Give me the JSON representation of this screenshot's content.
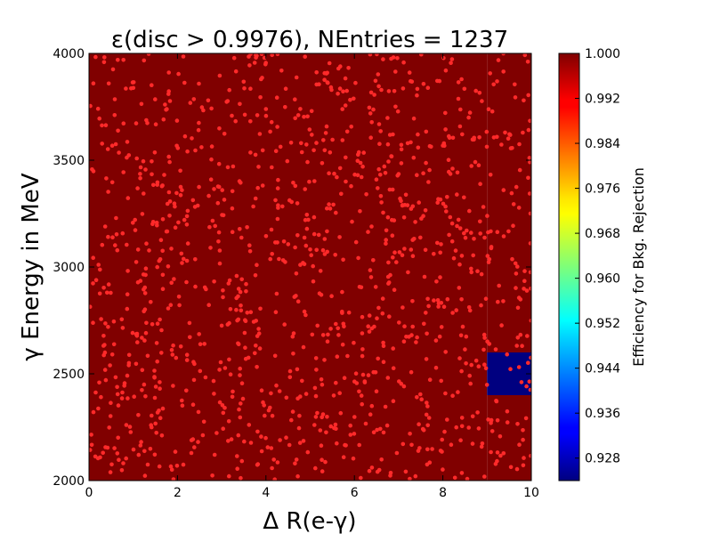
{
  "chart_data": {
    "type": "heatmap",
    "title": "ε(disc > 0.9976), NEntries = 1237",
    "xlabel": "Δ R(e-γ)",
    "ylabel": "γ Energy in MeV",
    "xlim": [
      0,
      10
    ],
    "ylim": [
      2000,
      4000
    ],
    "x_ticks": [
      0,
      2,
      4,
      6,
      8,
      10
    ],
    "x_tick_labels": [
      "0",
      "2",
      "4",
      "6",
      "8",
      "10"
    ],
    "y_ticks": [
      2000,
      2500,
      3000,
      3500,
      4000
    ],
    "y_tick_labels": [
      "2000",
      "2500",
      "3000",
      "3500",
      "4000"
    ],
    "colorbar": {
      "label": "Efficiency for Bkg. Rejection",
      "range": [
        0.924,
        1.0
      ],
      "ticks": [
        0.928,
        0.936,
        0.944,
        0.952,
        0.96,
        0.968,
        0.976,
        0.984,
        0.992,
        1.0
      ],
      "tick_labels": [
        "0.928",
        "0.936",
        "0.944",
        "0.952",
        "0.960",
        "0.968",
        "0.976",
        "0.984",
        "0.992",
        "1.000"
      ],
      "colormap": "jet"
    },
    "cells": [
      {
        "x_range": [
          0,
          9
        ],
        "y_range": [
          2000,
          4000
        ],
        "value": 1.0
      },
      {
        "x_range": [
          9,
          10
        ],
        "y_range": [
          2000,
          2400
        ],
        "value": 1.0
      },
      {
        "x_range": [
          9,
          10
        ],
        "y_range": [
          2600,
          4000
        ],
        "value": 1.0
      },
      {
        "x_range": [
          9,
          10
        ],
        "y_range": [
          2400,
          2600
        ],
        "value": 0.924
      }
    ],
    "scatter": {
      "n_entries": 1237,
      "color": "#ff2a2a",
      "x_range": [
        0,
        10
      ],
      "y_range": [
        2000,
        4000
      ]
    },
    "grid": false
  }
}
